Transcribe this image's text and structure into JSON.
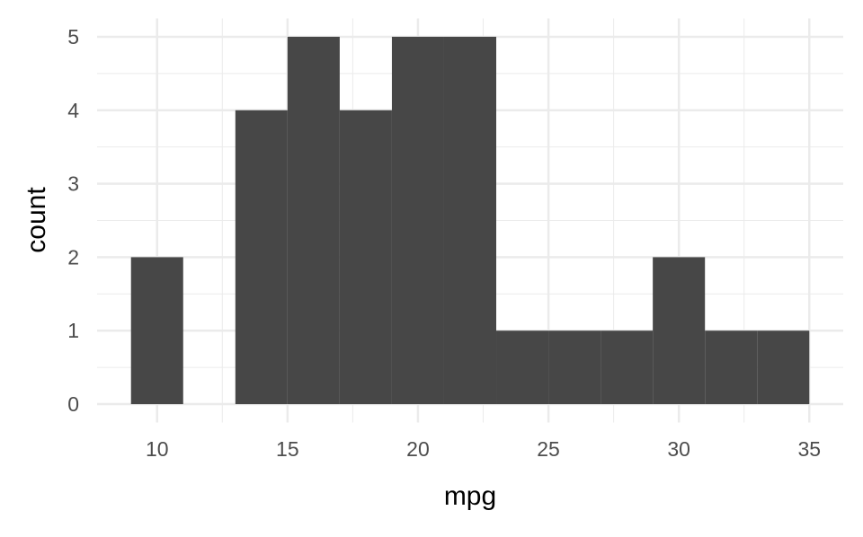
{
  "chart_data": {
    "type": "bar",
    "subtype": "histogram",
    "title": "",
    "xlabel": "mpg",
    "ylabel": "count",
    "bin_width": 2,
    "bins": [
      {
        "x0": 9,
        "x1": 11,
        "count": 2
      },
      {
        "x0": 11,
        "x1": 13,
        "count": 0
      },
      {
        "x0": 13,
        "x1": 15,
        "count": 4
      },
      {
        "x0": 15,
        "x1": 17,
        "count": 5
      },
      {
        "x0": 17,
        "x1": 19,
        "count": 4
      },
      {
        "x0": 19,
        "x1": 21,
        "count": 5
      },
      {
        "x0": 21,
        "x1": 23,
        "count": 5
      },
      {
        "x0": 23,
        "x1": 25,
        "count": 1
      },
      {
        "x0": 25,
        "x1": 27,
        "count": 1
      },
      {
        "x0": 27,
        "x1": 29,
        "count": 1
      },
      {
        "x0": 29,
        "x1": 31,
        "count": 2
      },
      {
        "x0": 31,
        "x1": 33,
        "count": 1
      },
      {
        "x0": 33,
        "x1": 35,
        "count": 1
      }
    ],
    "xlim": [
      7.7,
      36.3
    ],
    "ylim": [
      -0.25,
      5.25
    ],
    "x_ticks": [
      "10",
      "15",
      "20",
      "25",
      "30",
      "35"
    ],
    "y_ticks": [
      "0",
      "1",
      "2",
      "3",
      "4",
      "5"
    ],
    "grid": true,
    "legend": "none",
    "colors": {
      "bar": "#474747",
      "grid": "#ebebeb",
      "tick_label": "#4d4d4d",
      "axis_title": "#000000"
    }
  }
}
